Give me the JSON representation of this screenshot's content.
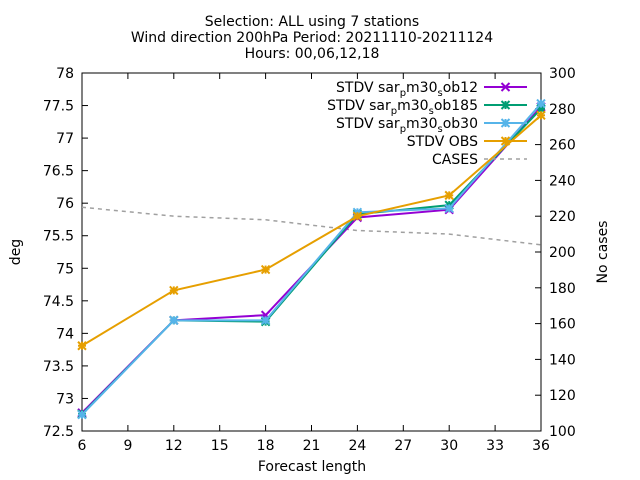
{
  "chart_data": {
    "type": "line",
    "title_lines": [
      "Selection: ALL using      7 stations",
      "Wind direction 200hPa   Period: 20211110-20211124",
      "Hours: 00,06,12,18"
    ],
    "xlabel": "Forecast length",
    "ylabel": "deg",
    "y2label": "No cases",
    "x_ticks": [
      6,
      9,
      12,
      15,
      18,
      21,
      24,
      27,
      30,
      33,
      36
    ],
    "y_ticks": [
      72.5,
      73,
      73.5,
      74,
      74.5,
      75,
      75.5,
      76,
      76.5,
      77,
      77.5,
      78
    ],
    "y2_ticks": [
      100,
      120,
      140,
      160,
      180,
      200,
      220,
      240,
      260,
      280,
      300
    ],
    "xlim": [
      6,
      36
    ],
    "ylim": [
      72.5,
      78
    ],
    "y2lim": [
      100,
      300
    ],
    "grid": false,
    "legend_position": "top-right",
    "series": [
      {
        "name": "STDV sar_m30_ob12",
        "legend_main": "STDV sar",
        "legend_subs": [
          "p",
          "s"
        ],
        "legend_parts": [
          "m30",
          "ob12"
        ],
        "color": "#9400d3",
        "marker": "x",
        "axis": "y1",
        "dashed": false,
        "x": [
          6,
          12,
          18,
          24,
          30,
          36
        ],
        "values": [
          72.78,
          74.2,
          74.28,
          75.78,
          75.9,
          77.48
        ]
      },
      {
        "name": "STDV sar_m30_ob185",
        "legend_main": "STDV sar",
        "legend_subs": [
          "p",
          "s"
        ],
        "legend_parts": [
          "m30",
          "ob185"
        ],
        "color": "#009e73",
        "marker": "star",
        "axis": "y1",
        "dashed": false,
        "x": [
          6,
          12,
          18,
          24,
          30,
          36
        ],
        "values": [
          72.76,
          74.2,
          74.18,
          75.83,
          75.97,
          77.45
        ]
      },
      {
        "name": "STDV sar_m30_ob30",
        "legend_main": "STDV sar",
        "legend_subs": [
          "p",
          "s"
        ],
        "legend_parts": [
          "m30",
          "ob30"
        ],
        "color": "#56b4e9",
        "marker": "star",
        "axis": "y1",
        "dashed": false,
        "x": [
          6,
          12,
          18,
          24,
          30,
          36
        ],
        "values": [
          72.75,
          74.2,
          74.2,
          75.86,
          75.92,
          77.53
        ]
      },
      {
        "name": "STDV OBS",
        "legend_main": "STDV OBS",
        "legend_subs": [],
        "legend_parts": [],
        "color": "#e69f00",
        "marker": "star",
        "axis": "y1",
        "dashed": false,
        "x": [
          6,
          12,
          18,
          24,
          30,
          36
        ],
        "values": [
          73.81,
          74.66,
          74.98,
          75.8,
          76.12,
          77.35
        ]
      },
      {
        "name": "CASES",
        "legend_main": "CASES",
        "legend_subs": [],
        "legend_parts": [],
        "color": "#a0a0a0",
        "marker": "none",
        "axis": "y2",
        "dashed": true,
        "x": [
          6,
          12,
          18,
          24,
          30,
          36
        ],
        "values": [
          225,
          220,
          218,
          212,
          210,
          204
        ]
      }
    ]
  }
}
